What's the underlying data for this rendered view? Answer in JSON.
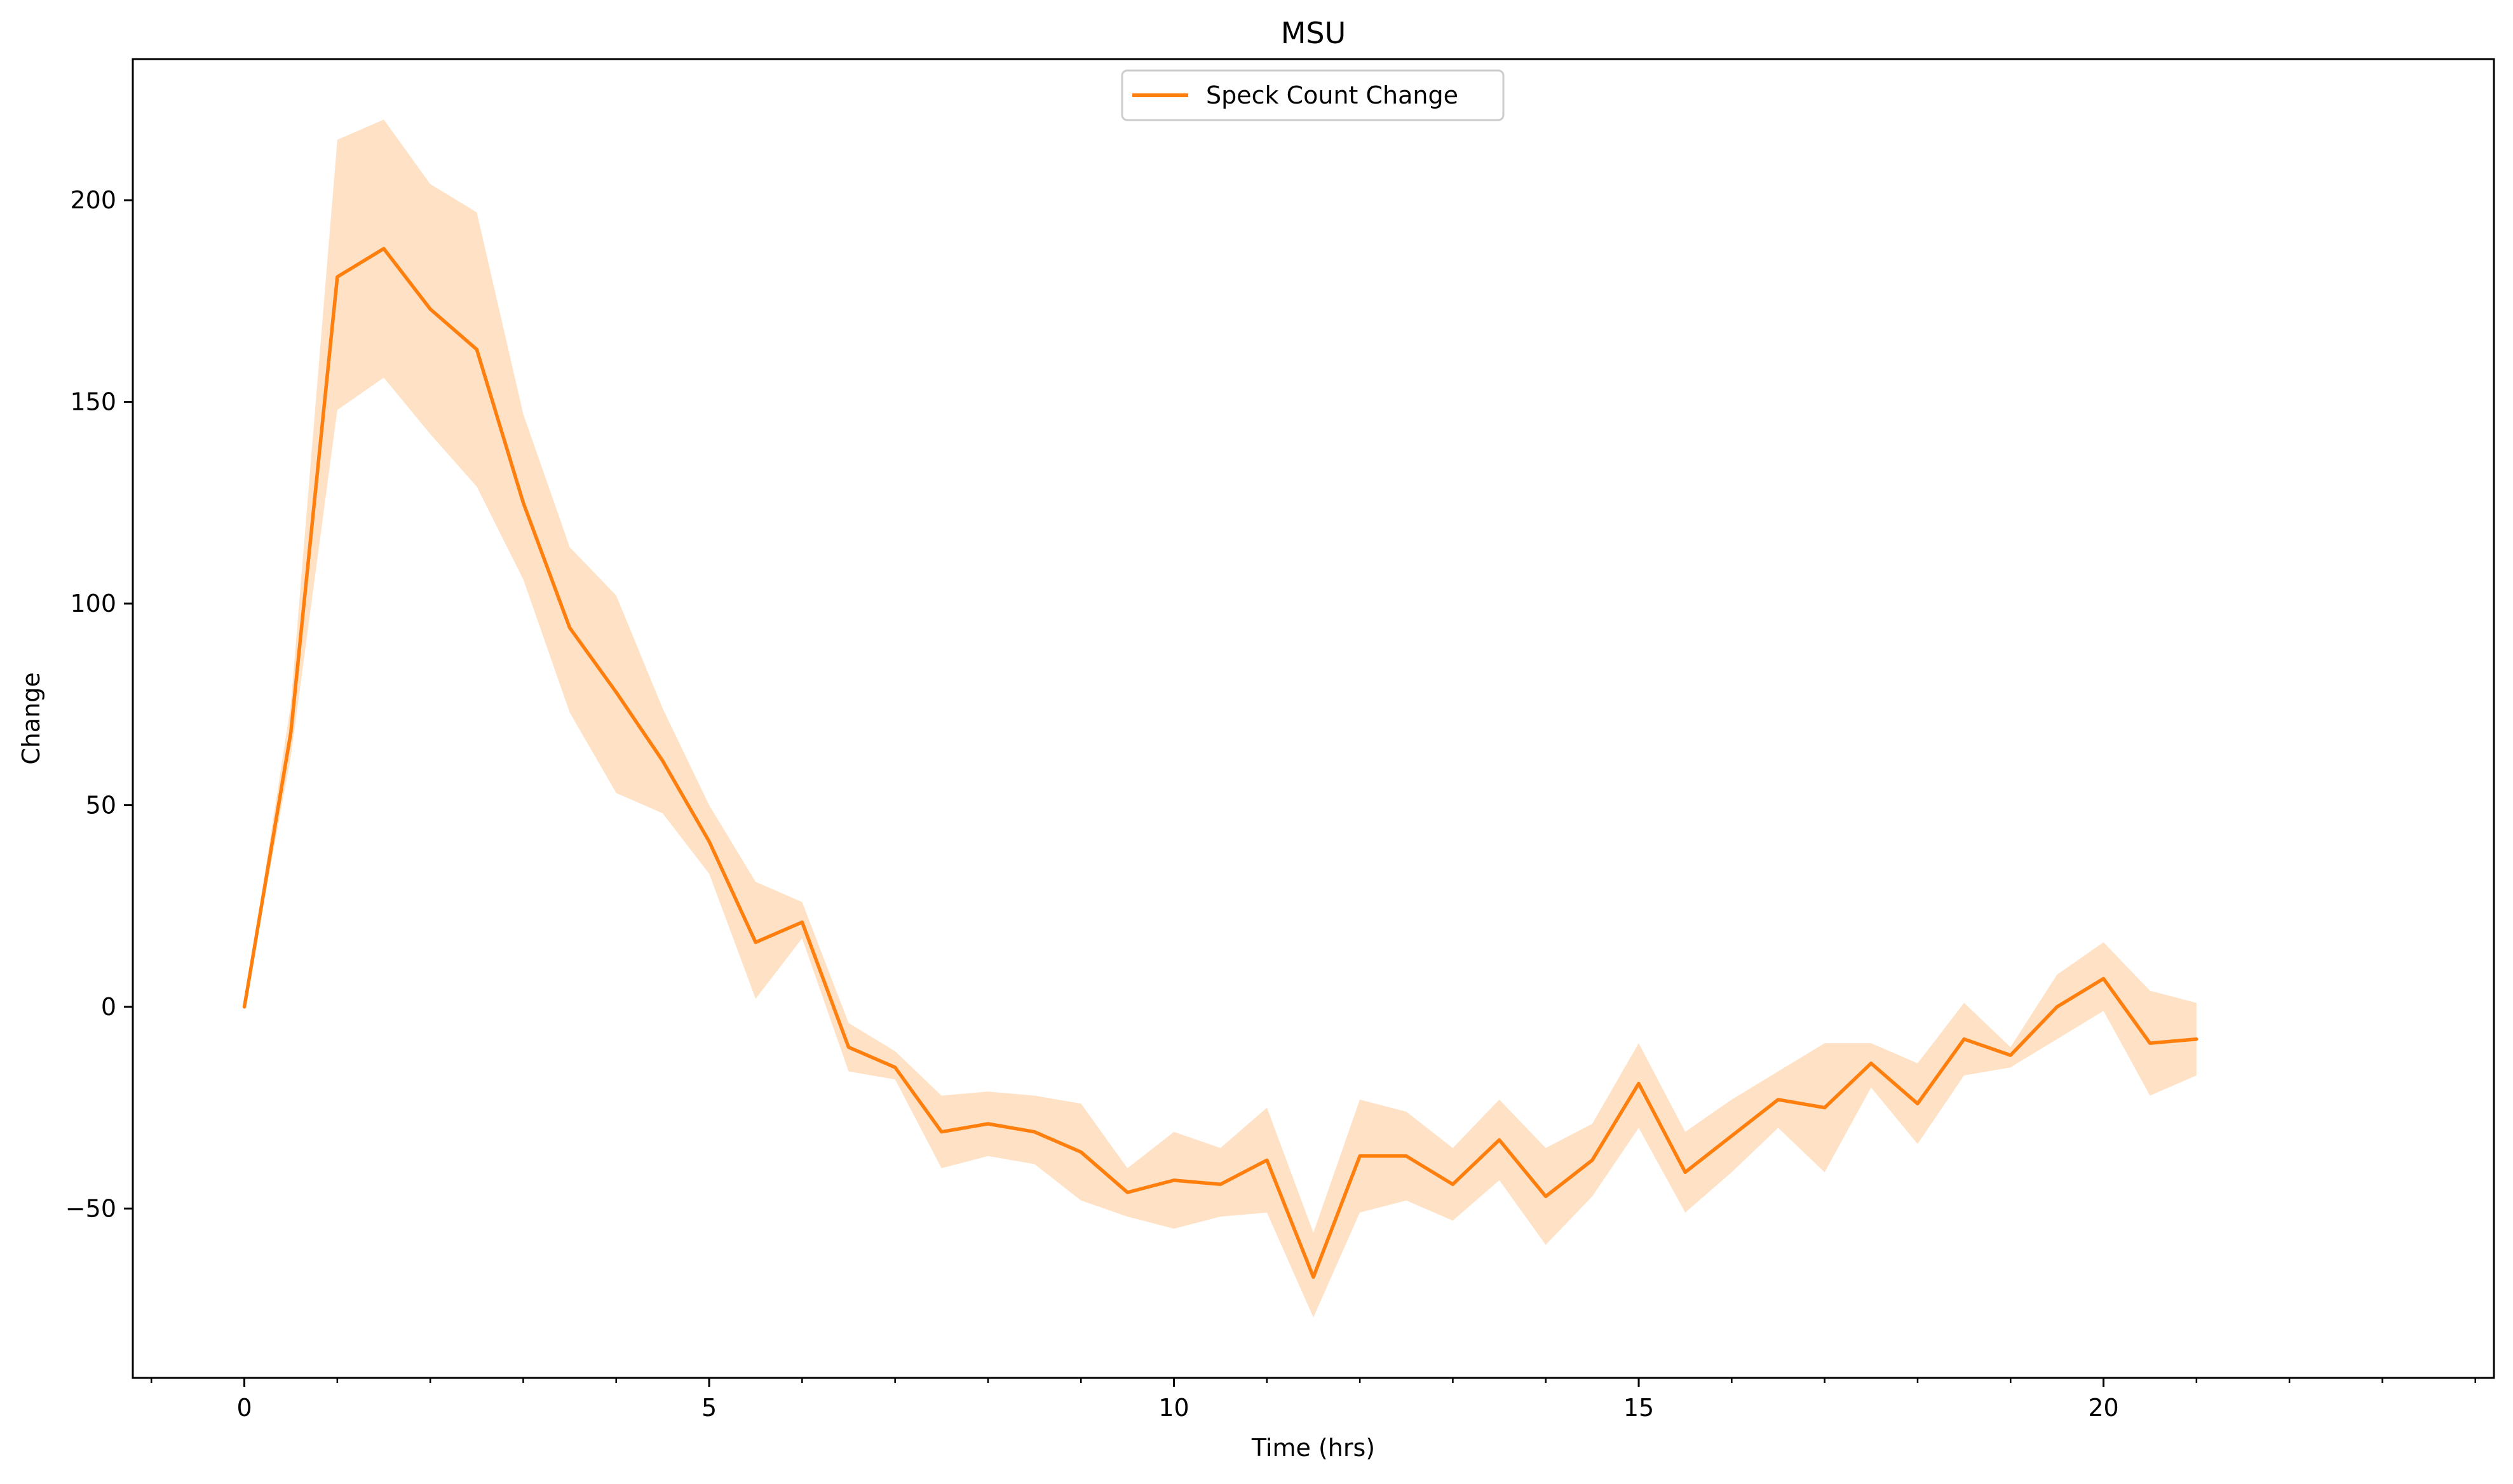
{
  "chart_data": {
    "type": "line",
    "title": "MSU",
    "xlabel": "Time (hrs)",
    "ylabel": "Change",
    "xlim": [
      -1.2,
      24.2
    ],
    "ylim": [
      -92,
      235
    ],
    "xticks": [
      0,
      5,
      10,
      15,
      20
    ],
    "xtick_labels": [
      "0",
      "5",
      "10",
      "15",
      "20"
    ],
    "xminor_ticks": [
      -1,
      1,
      2,
      3,
      4,
      6,
      7,
      8,
      9,
      11,
      12,
      13,
      14,
      16,
      17,
      18,
      19,
      21,
      22,
      23,
      24
    ],
    "yticks": [
      -50,
      0,
      50,
      100,
      150,
      200
    ],
    "ytick_labels": [
      "−50",
      "0",
      "50",
      "100",
      "150",
      "200"
    ],
    "legend": {
      "position": "top-center",
      "entries": [
        "Speck Count Change"
      ]
    },
    "colors": {
      "line": "#ff7f0e",
      "band": "#ffdfc2"
    },
    "series": [
      {
        "name": "Speck Count Change",
        "x": [
          0,
          0.5,
          1,
          1.5,
          2,
          2.5,
          3,
          3.5,
          4,
          4.5,
          5,
          5.5,
          6,
          6.5,
          7,
          7.5,
          8,
          8.5,
          9,
          9.5,
          10,
          10.5,
          11,
          11.5,
          12,
          12.5,
          13,
          13.5,
          14,
          14.5,
          15,
          15.5,
          16,
          16.5,
          17,
          17.5,
          18,
          18.5,
          19,
          19.5,
          20,
          20.5,
          21
        ],
        "y": [
          0,
          68,
          181,
          188,
          173,
          163,
          125,
          94,
          78,
          61,
          41,
          16,
          21,
          -10,
          -15,
          -31,
          -29,
          -31,
          -36,
          -46,
          -43,
          -44,
          -38,
          -67,
          -37,
          -37,
          -44,
          -33,
          -47,
          -38,
          -19,
          -41,
          -32,
          -23,
          -25,
          -14,
          -24,
          -8,
          -12,
          0,
          7,
          -9,
          -8
        ],
        "lower": [
          0,
          62,
          148,
          156,
          142,
          129,
          106,
          73,
          53,
          48,
          33,
          2,
          17,
          -16,
          -18,
          -40,
          -37,
          -39,
          -48,
          -52,
          -55,
          -52,
          -51,
          -77,
          -51,
          -48,
          -53,
          -43,
          -59,
          -47,
          -30,
          -51,
          -41,
          -30,
          -41,
          -20,
          -34,
          -17,
          -15,
          -8,
          -1,
          -22,
          -17
        ],
        "upper": [
          0,
          75,
          215,
          220,
          204,
          197,
          147,
          114,
          102,
          74,
          50,
          31,
          26,
          -4,
          -11,
          -22,
          -21,
          -22,
          -24,
          -40,
          -31,
          -35,
          -25,
          -56,
          -23,
          -26,
          -35,
          -23,
          -35,
          -29,
          -9,
          -31,
          -23,
          -16,
          -9,
          -9,
          -14,
          1,
          -10,
          8,
          16,
          4,
          1
        ]
      }
    ]
  }
}
